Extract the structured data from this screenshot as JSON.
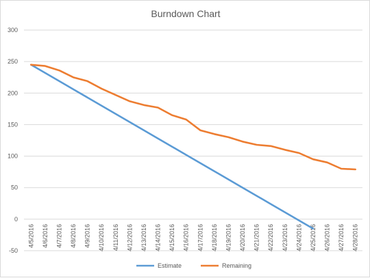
{
  "chart_data": {
    "type": "line",
    "title": "Burndown Chart",
    "xlabel": "",
    "ylabel": "",
    "ylim": [
      -50,
      300
    ],
    "yticks": [
      -50,
      0,
      50,
      100,
      150,
      200,
      250,
      300
    ],
    "grid": true,
    "legend_position": "bottom",
    "categories": [
      "4/5/2016",
      "4/6/2016",
      "4/7/2016",
      "4/8/2016",
      "4/9/2016",
      "4/10/2016",
      "4/11/2016",
      "4/12/2016",
      "4/13/2016",
      "4/14/2016",
      "4/15/2016",
      "4/16/2016",
      "4/17/2016",
      "4/18/2016",
      "4/19/2016",
      "4/20/2016",
      "4/21/2016",
      "4/22/2016",
      "4/23/2016",
      "4/24/2016",
      "4/25/2016",
      "4/26/2016",
      "4/27/2016",
      "4/28/2016"
    ],
    "series": [
      {
        "name": "Estimate",
        "color": "#5b9bd5",
        "values": [
          245,
          232,
          219,
          206,
          193,
          180,
          167,
          154,
          141,
          128,
          115,
          102,
          89,
          76,
          63,
          50,
          37,
          24,
          11,
          -2,
          -15,
          null,
          null,
          null
        ]
      },
      {
        "name": "Remaining",
        "color": "#ed7d31",
        "values": [
          245,
          243,
          236,
          225,
          219,
          207,
          197,
          187,
          181,
          177,
          165,
          158,
          141,
          135,
          130,
          123,
          118,
          116,
          110,
          105,
          95,
          90,
          80,
          79
        ]
      }
    ]
  }
}
